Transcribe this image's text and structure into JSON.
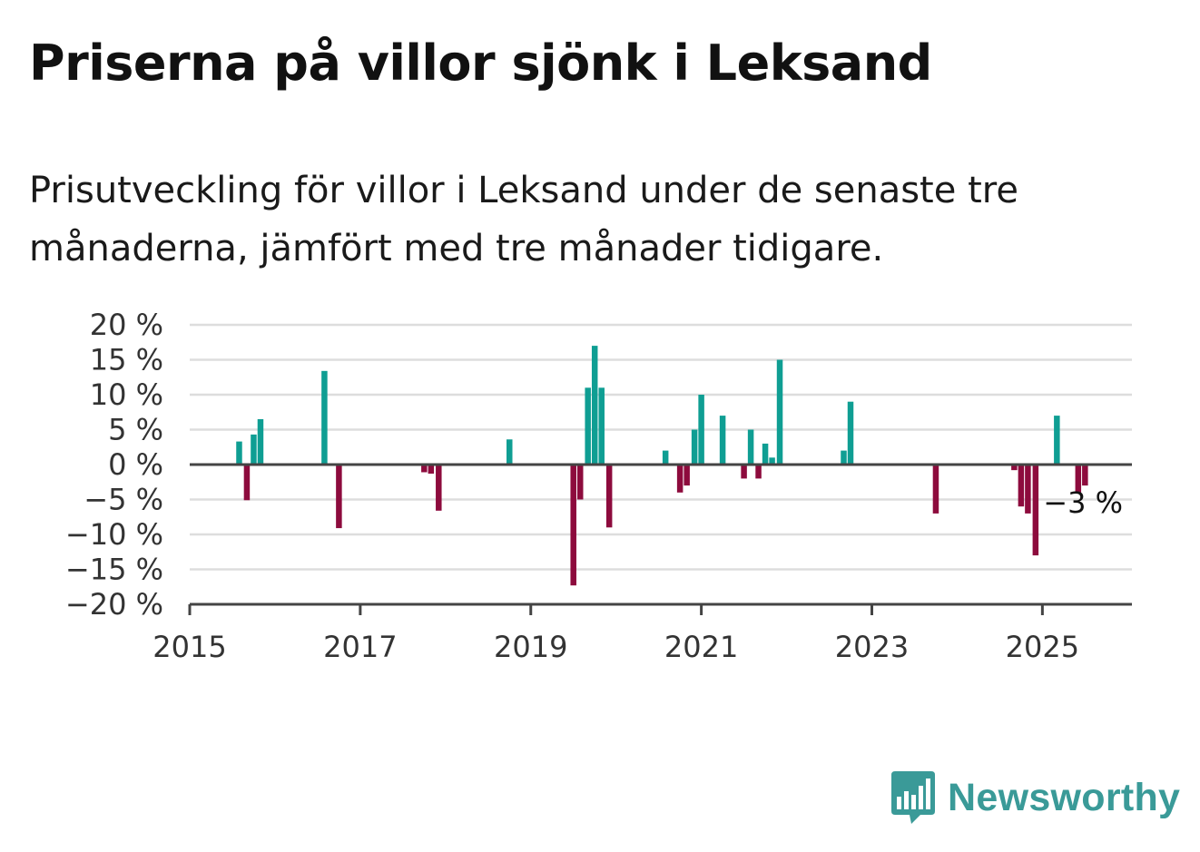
{
  "title": "Priserna på villor sjönk i Leksand",
  "subtitle": "Prisutveckling för villor i Leksand under de senaste tre månaderna, jämfört med tre månader tidigare.",
  "brand": {
    "name": "Newsworthy",
    "color": "#3a9a98",
    "icon": "newsworthy-chart-bubble-icon"
  },
  "colors": {
    "positive": "#0f9e93",
    "negative": "#8d0b3d",
    "grid": "#dddddd",
    "axis": "#444444",
    "text": "#333333"
  },
  "chart_data": {
    "type": "bar",
    "xlim": [
      2015,
      2026.05
    ],
    "ylim": [
      -20,
      20
    ],
    "yticks": [
      20,
      15,
      10,
      5,
      0,
      -5,
      -10,
      -15,
      -20
    ],
    "ytick_labels": [
      "20 %",
      "15 %",
      "10 %",
      "5 %",
      "0 %",
      "−5 %",
      "−10 %",
      "−15 %",
      "−20 %"
    ],
    "xticks": [
      2015,
      2017,
      2019,
      2021,
      2023,
      2025
    ],
    "xtick_labels": [
      "2015",
      "2017",
      "2019",
      "2021",
      "2023",
      "2025"
    ],
    "grid": true,
    "annotation": {
      "text": "−3 %",
      "x": 2025.67,
      "y": -3
    },
    "x": [
      2015.58,
      2015.67,
      2015.75,
      2015.83,
      2016.58,
      2016.75,
      2017.75,
      2017.83,
      2017.92,
      2018.75,
      2019.5,
      2019.58,
      2019.67,
      2019.75,
      2019.83,
      2019.92,
      2020.58,
      2020.75,
      2020.83,
      2020.92,
      2021.0,
      2021.25,
      2021.5,
      2021.58,
      2021.67,
      2021.75,
      2021.83,
      2021.92,
      2022.67,
      2022.75,
      2023.75,
      2024.67,
      2024.75,
      2024.83,
      2024.92,
      2025.17,
      2025.42,
      2025.5
    ],
    "values": [
      3.3,
      -5.1,
      4.3,
      6.5,
      13.4,
      -9.1,
      -1.1,
      -1.3,
      -6.6,
      3.6,
      -17.3,
      -5.0,
      11.0,
      17.0,
      11.0,
      -9.0,
      2.0,
      -4.0,
      -3.0,
      5.0,
      10.0,
      7.0,
      -2.0,
      5.0,
      -2.0,
      3.0,
      1.0,
      15.0,
      2.0,
      9.0,
      -7.0,
      -0.8,
      -6.0,
      -7.0,
      -13.0,
      7.0,
      -4.0,
      -3.0
    ]
  }
}
